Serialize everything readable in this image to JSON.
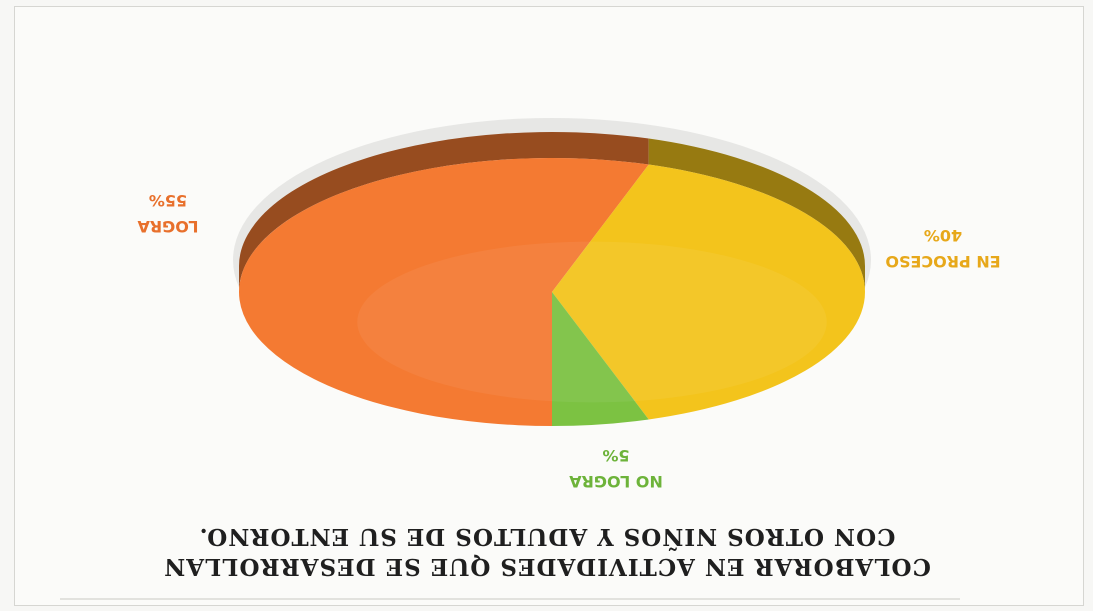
{
  "chart_data": {
    "type": "pie",
    "title_lines": [
      "COLABORAR EN ACTIVIDADES QUE SE DESARROLLAN",
      "CON OTROS NIÑOS Y ADULTOS DE SU ENTORNO."
    ],
    "categories": [
      "LOGRA",
      "EN PROCESO",
      "NO LOGRA"
    ],
    "values": [
      55,
      40,
      5
    ],
    "value_labels": [
      "55%",
      "40%",
      "5%"
    ],
    "colors": {
      "LOGRA": "#f47a32",
      "EN PROCESO": "#f3c41c",
      "NO LOGRA": "#7cc242"
    },
    "label_colors": {
      "LOGRA": "#e8702c",
      "EN PROCESO": "#e7a81a",
      "NO LOGRA": "#6db33a"
    },
    "style": "3d-tilted",
    "orientation": "rotated-180"
  }
}
